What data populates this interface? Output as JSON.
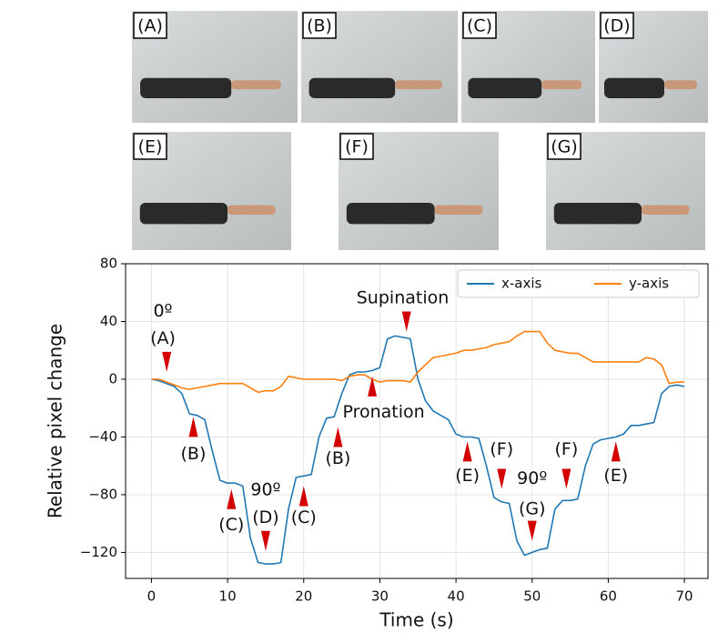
{
  "photos": [
    "(A)",
    "(B)",
    "(C)",
    "(D)",
    "(E)",
    "(F)",
    "(G)"
  ],
  "chart_data": {
    "type": "line",
    "xlabel": "Time (s)",
    "ylabel": "Relative pixel change",
    "x": [
      0,
      1,
      2,
      3,
      4,
      5,
      6,
      7,
      8,
      9,
      10,
      11,
      12,
      13,
      14,
      15,
      16,
      17,
      18,
      19,
      20,
      21,
      22,
      23,
      24,
      25,
      26,
      27,
      28,
      29,
      30,
      31,
      32,
      33,
      34,
      35,
      36,
      37,
      38,
      39,
      40,
      41,
      42,
      43,
      44,
      45,
      46,
      47,
      48,
      49,
      50,
      51,
      52,
      53,
      54,
      55,
      56,
      57,
      58,
      59,
      60,
      61,
      62,
      63,
      64,
      65,
      66,
      67,
      68,
      69,
      70
    ],
    "series": [
      {
        "name": "x-axis",
        "color": "#1f77b4",
        "values": [
          0,
          -1,
          -3,
          -5,
          -10,
          -24,
          -25,
          -28,
          -50,
          -70,
          -72,
          -72,
          -74,
          -110,
          -127,
          -128,
          -128,
          -127,
          -90,
          -68,
          -67,
          -66,
          -40,
          -27,
          -26,
          -10,
          3,
          5,
          5,
          6,
          8,
          28,
          30,
          29,
          28,
          0,
          -15,
          -22,
          -25,
          -28,
          -38,
          -40,
          -40,
          -41,
          -60,
          -82,
          -85,
          -86,
          -112,
          -122,
          -120,
          -118,
          -117,
          -90,
          -84,
          -84,
          -83,
          -60,
          -45,
          -42,
          -41,
          -40,
          -38,
          -32,
          -32,
          -31,
          -30,
          -10,
          -5,
          -4,
          -5
        ]
      },
      {
        "name": "y-axis",
        "color": "#ff7f0e",
        "values": [
          0,
          0,
          -2,
          -4,
          -6,
          -7,
          -6,
          -5,
          -4,
          -3,
          -3,
          -3,
          -3,
          -6,
          -9,
          -8,
          -8,
          -5,
          2,
          1,
          0,
          0,
          0,
          0,
          0,
          -1,
          2,
          3,
          3,
          0,
          -2,
          -1,
          -1,
          -1,
          -2,
          5,
          10,
          15,
          16,
          17,
          18,
          20,
          20,
          21,
          22,
          24,
          25,
          26,
          30,
          33,
          33,
          33,
          25,
          20,
          19,
          18,
          18,
          15,
          12,
          12,
          12,
          12,
          12,
          12,
          12,
          15,
          14,
          10,
          -3,
          -2,
          -2
        ]
      }
    ],
    "xlim": [
      -3.4,
      73.1
    ],
    "ylim": [
      -138,
      80
    ],
    "xticks": [
      0,
      10,
      20,
      30,
      40,
      50,
      60,
      70
    ],
    "yticks": [
      {
        "value": -120,
        "label": "−120"
      },
      {
        "value": -80,
        "label": "−80"
      },
      {
        "value": -40,
        "label": "−40"
      },
      0,
      40,
      80
    ],
    "grid": true,
    "legend": "upper right",
    "annotations": [
      "0º",
      "(A)",
      "(B)",
      "(C)",
      "90º",
      "(D)",
      "(C)",
      "(B)",
      "Pronation",
      "Supination",
      "(E)",
      "(F)",
      "90º",
      "(G)",
      "(F)",
      "(E)"
    ]
  }
}
